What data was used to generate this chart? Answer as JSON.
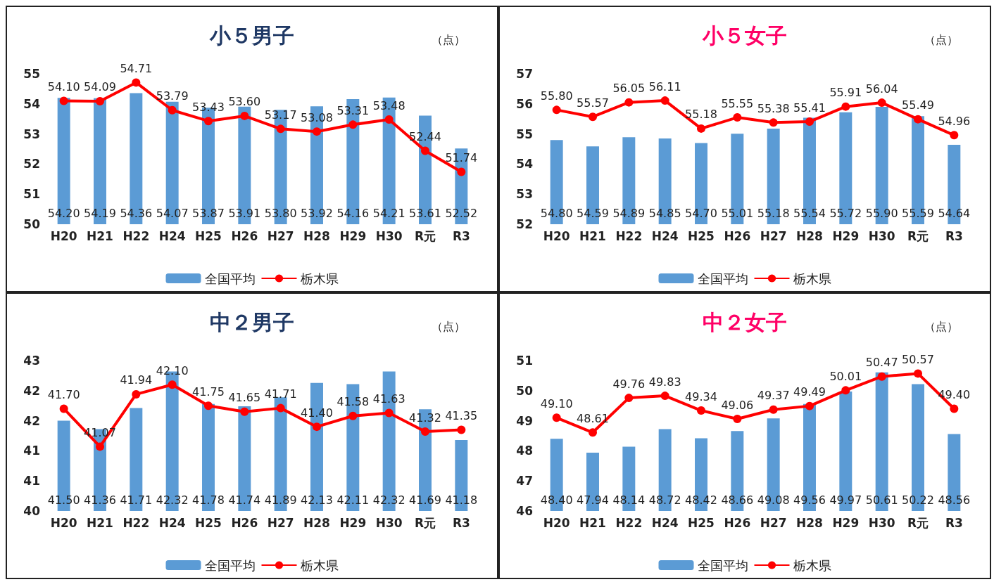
{
  "chart_data": [
    {
      "type": "bar",
      "title": "小５男子",
      "annotations": [
        "（点）"
      ],
      "categories": [
        "H20",
        "H21",
        "H22",
        "H24",
        "H25",
        "H26",
        "H27",
        "H28",
        "H29",
        "H30",
        "R元",
        "R3"
      ],
      "ylim": [
        50,
        55
      ],
      "yticks": [
        50,
        51,
        52,
        53,
        54,
        55
      ],
      "grid": false,
      "legend": "bottom",
      "marker": "circle",
      "series": [
        {
          "name": "全国平均",
          "color": "#5b9bd5",
          "values": [
            54.2,
            54.19,
            54.36,
            54.07,
            53.87,
            53.91,
            53.8,
            53.92,
            54.16,
            54.21,
            53.61,
            52.52
          ],
          "value_labels": [
            "54.20",
            "54.19",
            "54.36",
            "54.07",
            "53.87",
            "53.91",
            "53.80",
            "53.92",
            "54.16",
            "54.21",
            "53.61",
            "52.52"
          ]
        },
        {
          "name": "栃木県",
          "type": "line",
          "color": "#ff0000",
          "values": [
            54.1,
            54.09,
            54.71,
            53.79,
            53.43,
            53.6,
            53.17,
            53.08,
            53.31,
            53.48,
            52.44,
            51.74
          ],
          "value_labels": [
            "54.10",
            "54.09",
            "54.71",
            "53.79",
            "53.43",
            "53.60",
            "53.17",
            "53.08",
            "53.31",
            "53.48",
            "52.44",
            "51.74"
          ]
        }
      ]
    },
    {
      "type": "bar",
      "title": "小５女子",
      "annotations": [
        "（点）"
      ],
      "categories": [
        "H20",
        "H21",
        "H22",
        "H24",
        "H25",
        "H26",
        "H27",
        "H28",
        "H29",
        "H30",
        "R元",
        "R3"
      ],
      "ylim": [
        52,
        57
      ],
      "yticks": [
        52,
        53,
        54,
        55,
        56,
        57
      ],
      "grid": false,
      "legend": "bottom",
      "marker": "circle",
      "series": [
        {
          "name": "全国平均",
          "color": "#5b9bd5",
          "values": [
            54.8,
            54.59,
            54.89,
            54.85,
            54.7,
            55.01,
            55.18,
            55.54,
            55.72,
            55.9,
            55.59,
            54.64
          ],
          "value_labels": [
            "54.80",
            "54.59",
            "54.89",
            "54.85",
            "54.70",
            "55.01",
            "55.18",
            "55.54",
            "55.72",
            "55.90",
            "55.59",
            "54.64"
          ]
        },
        {
          "name": "栃木県",
          "type": "line",
          "color": "#ff0000",
          "values": [
            55.8,
            55.57,
            56.05,
            56.11,
            55.18,
            55.55,
            55.38,
            55.41,
            55.91,
            56.04,
            55.49,
            54.96
          ],
          "value_labels": [
            "55.80",
            "55.57",
            "56.05",
            "56.11",
            "55.18",
            "55.55",
            "55.38",
            "55.41",
            "55.91",
            "56.04",
            "55.49",
            "54.96"
          ]
        }
      ]
    },
    {
      "type": "bar",
      "title": "中２男子",
      "annotations": [
        "（点）"
      ],
      "categories": [
        "H20",
        "H21",
        "H22",
        "H24",
        "H25",
        "H26",
        "H27",
        "H28",
        "H29",
        "H30",
        "R元",
        "R3"
      ],
      "ylim": [
        40,
        42.5
      ],
      "yticks": [
        40,
        {
          "value": 40.5,
          "label": "41"
        },
        41,
        {
          "value": 41.5,
          "label": "42"
        },
        42,
        {
          "value": 42.5,
          "label": "43"
        }
      ],
      "grid": false,
      "legend": "bottom",
      "marker": "circle",
      "series": [
        {
          "name": "全国平均",
          "color": "#5b9bd5",
          "values": [
            41.5,
            41.36,
            41.71,
            42.32,
            41.78,
            41.74,
            41.89,
            42.13,
            42.11,
            42.32,
            41.69,
            41.18
          ],
          "value_labels": [
            "41.50",
            "41.36",
            "41.71",
            "42.32",
            "41.78",
            "41.74",
            "41.89",
            "42.13",
            "42.11",
            "42.32",
            "41.69",
            "41.18"
          ]
        },
        {
          "name": "栃木県",
          "type": "line",
          "color": "#ff0000",
          "values": [
            41.7,
            41.07,
            41.94,
            42.1,
            41.75,
            41.65,
            41.71,
            41.4,
            41.58,
            41.63,
            41.32,
            41.35
          ],
          "value_labels": [
            "41.70",
            "41.07",
            "41.94",
            "42.10",
            "41.75",
            "41.65",
            "41.71",
            "41.40",
            "41.58",
            "41.63",
            "41.32",
            "41.35"
          ]
        }
      ]
    },
    {
      "type": "bar",
      "title": "中２女子",
      "annotations": [
        "（点）"
      ],
      "categories": [
        "H20",
        "H21",
        "H22",
        "H24",
        "H25",
        "H26",
        "H27",
        "H28",
        "H29",
        "H30",
        "R元",
        "R3"
      ],
      "ylim": [
        46,
        51
      ],
      "yticks": [
        46,
        47,
        48,
        49,
        50,
        51
      ],
      "grid": false,
      "legend": "bottom",
      "marker": "circle",
      "series": [
        {
          "name": "全国平均",
          "color": "#5b9bd5",
          "values": [
            48.4,
            47.94,
            48.14,
            48.72,
            48.42,
            48.66,
            49.08,
            49.56,
            49.97,
            50.61,
            50.22,
            48.56
          ],
          "value_labels": [
            "48.40",
            "47.94",
            "48.14",
            "48.72",
            "48.42",
            "48.66",
            "49.08",
            "49.56",
            "49.97",
            "50.61",
            "50.22",
            "48.56"
          ]
        },
        {
          "name": "栃木県",
          "type": "line",
          "color": "#ff0000",
          "values": [
            49.1,
            48.61,
            49.76,
            49.83,
            49.34,
            49.06,
            49.37,
            49.49,
            50.01,
            50.47,
            50.57,
            49.4
          ],
          "value_labels": [
            "49.10",
            "48.61",
            "49.76",
            "49.83",
            "49.34",
            "49.06",
            "49.37",
            "49.49",
            "50.01",
            "50.47",
            "50.57",
            "49.40"
          ]
        }
      ]
    }
  ]
}
